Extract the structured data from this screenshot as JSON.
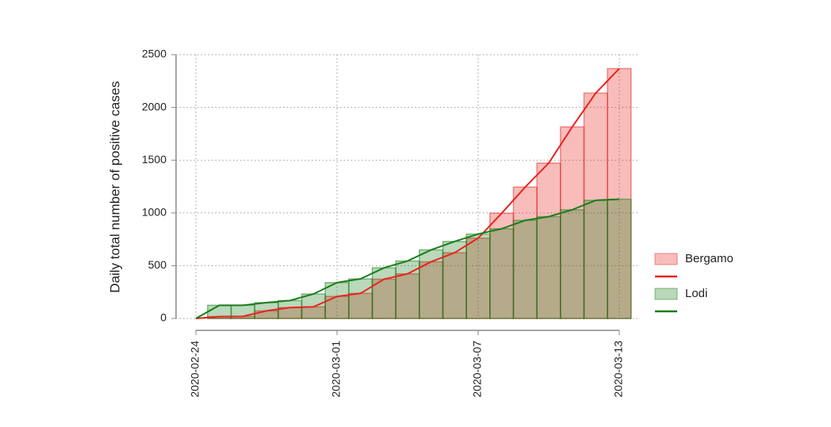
{
  "chart_data": {
    "type": "bar-line",
    "y_label": "Daily total number of positive cases",
    "categories": [
      "2020-02-24",
      null,
      null,
      null,
      null,
      null,
      "2020-03-01",
      null,
      null,
      null,
      null,
      null,
      "2020-03-07",
      null,
      null,
      null,
      null,
      null,
      "2020-03-13"
    ],
    "series": [
      {
        "name": "Bergamo",
        "color": "#e8231f",
        "values": [
          0,
          18,
          20,
          72,
          103,
          110,
          209,
          238,
          372,
          423,
          537,
          623,
          761,
          997,
          1245,
          1472,
          1815,
          2136,
          2368
        ]
      },
      {
        "name": "Lodi",
        "color": "#1a7d1a",
        "values": [
          0,
          125,
          125,
          150,
          170,
          232,
          340,
          375,
          480,
          545,
          650,
          730,
          800,
          850,
          930,
          965,
          1030,
          1120,
          1130
        ]
      }
    ],
    "ylim": [
      0,
      2500
    ],
    "yticks": [
      0,
      500,
      1000,
      1500,
      2000,
      2500
    ],
    "grid": true,
    "legend": "right"
  }
}
